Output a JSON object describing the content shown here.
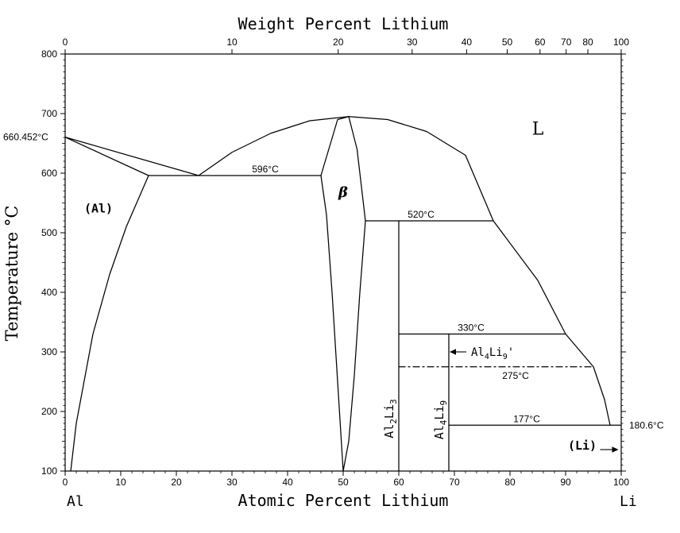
{
  "chart_data": {
    "type": "line",
    "title": "",
    "x_axis": {
      "label": "Atomic Percent Lithium",
      "range": [
        0,
        100
      ],
      "ticks": [
        0,
        10,
        20,
        30,
        40,
        50,
        60,
        70,
        80,
        90,
        100
      ],
      "left_end_label": "Al",
      "right_end_label": "Li"
    },
    "top_axis": {
      "label": "Weight Percent Lithium",
      "ticks": [
        {
          "label": "0",
          "at_pct": 0
        },
        {
          "label": "10",
          "at_pct": 30.0
        },
        {
          "label": "20",
          "at_pct": 49.1
        },
        {
          "label": "30",
          "at_pct": 62.4
        },
        {
          "label": "40",
          "at_pct": 72.2
        },
        {
          "label": "50",
          "at_pct": 79.5
        },
        {
          "label": "60",
          "at_pct": 85.4
        },
        {
          "label": "70",
          "at_pct": 90.1
        },
        {
          "label": "80",
          "at_pct": 94.0
        },
        {
          "label": "100",
          "at_pct": 100
        }
      ]
    },
    "y_axis": {
      "label": "Temperature °C",
      "range": [
        100,
        800
      ],
      "ticks": [
        100,
        200,
        300,
        400,
        500,
        600,
        700,
        800
      ]
    },
    "grid": false,
    "series": [
      {
        "points": [
          [
            0,
            660.452
          ],
          [
            24,
            596
          ]
        ]
      },
      {
        "points": [
          [
            0,
            660.452
          ],
          [
            15,
            596
          ]
        ]
      },
      {
        "points": [
          [
            15,
            596
          ],
          [
            11,
            510
          ],
          [
            8,
            430
          ],
          [
            5,
            330
          ],
          [
            2,
            180
          ],
          [
            1,
            100
          ]
        ]
      },
      {
        "points": [
          [
            15,
            596
          ],
          [
            46,
            596
          ]
        ]
      },
      {
        "points": [
          [
            24,
            596
          ],
          [
            30,
            635
          ],
          [
            37,
            667
          ],
          [
            44,
            688
          ],
          [
            51,
            695
          ]
        ]
      },
      {
        "points": [
          [
            51,
            695
          ],
          [
            58,
            690
          ],
          [
            65,
            670
          ],
          [
            72,
            630
          ],
          [
            77,
            520
          ],
          [
            85,
            420
          ],
          [
            90,
            330
          ],
          [
            95,
            275
          ],
          [
            97,
            220
          ],
          [
            98,
            177
          ]
        ]
      },
      {
        "points": [
          [
            46,
            596
          ],
          [
            47,
            530
          ],
          [
            48,
            400
          ],
          [
            49,
            250
          ],
          [
            50,
            100
          ]
        ]
      },
      {
        "points": [
          [
            46,
            596
          ],
          [
            49,
            690
          ],
          [
            51,
            695
          ]
        ]
      },
      {
        "points": [
          [
            51,
            695
          ],
          [
            52.5,
            640
          ],
          [
            54,
            520
          ]
        ]
      },
      {
        "points": [
          [
            54,
            520
          ],
          [
            53,
            400
          ],
          [
            52,
            260
          ],
          [
            51,
            150
          ],
          [
            50,
            100
          ]
        ]
      },
      {
        "points": [
          [
            54,
            520
          ],
          [
            77,
            520
          ]
        ]
      },
      {
        "points": [
          [
            60,
            520
          ],
          [
            60,
            100
          ]
        ]
      },
      {
        "points": [
          [
            60,
            330
          ],
          [
            90,
            330
          ]
        ]
      },
      {
        "points": [
          [
            69,
            330
          ],
          [
            69,
            100
          ]
        ]
      },
      {
        "points": [
          [
            60,
            275
          ],
          [
            95,
            275
          ]
        ],
        "style": "dashdot"
      },
      {
        "points": [
          [
            69,
            177
          ],
          [
            100,
            177
          ]
        ]
      }
    ],
    "temperature_labels": [
      {
        "text": "660.452°C",
        "x": 0,
        "y": 660.452
      },
      {
        "text": "596°C",
        "x": 36,
        "y": 596
      },
      {
        "text": "520°C",
        "x": 64,
        "y": 520
      },
      {
        "text": "330°C",
        "x": 73,
        "y": 330
      },
      {
        "text": "275°C",
        "x": 81,
        "y": 275
      },
      {
        "text": "177°C",
        "x": 83,
        "y": 177
      },
      {
        "text": "180.6°C",
        "x": 100,
        "y": 177
      }
    ],
    "phase_labels": [
      {
        "text": "L",
        "x": 85,
        "y": 665
      },
      {
        "text": "(Al)",
        "x": 6,
        "y": 534
      },
      {
        "text": "β",
        "x": 50,
        "y": 560
      },
      {
        "text": "(Li)",
        "x": 93,
        "y": 136
      }
    ],
    "compound_labels": [
      {
        "base": "Al",
        "sub1": "2",
        "mid": "Li",
        "sub2": "3",
        "x": 59,
        "y": 155
      },
      {
        "base": "Al",
        "sub1": "4",
        "mid": "Li",
        "sub2": "9",
        "x": 68,
        "y": 153
      }
    ],
    "arrow_labels": [
      {
        "base": "Al",
        "sub1": "4",
        "mid": "Li",
        "sub2": "9",
        "suffix": "'",
        "x": 73,
        "y": 300,
        "target_x": 69,
        "target_y": 300
      }
    ],
    "arrows": [
      {
        "from_x": 96.2,
        "from_y": 136,
        "to_x": 99.5,
        "to_y": 136
      }
    ]
  }
}
